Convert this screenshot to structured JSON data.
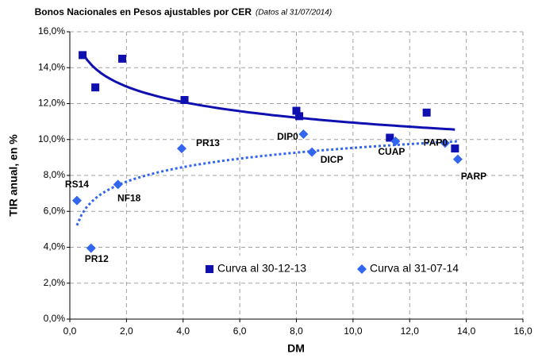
{
  "chart_data": {
    "type": "scatter",
    "title": "Bonos Nacionales en Pesos ajustables por CER",
    "subtitle": "(Datos al 31/07/2014)",
    "x_label": "DM",
    "y_label": "TIR anual, en %",
    "xlim": [
      0,
      16
    ],
    "xticks": [
      {
        "value": 0,
        "label": "0,0"
      },
      {
        "value": 2,
        "label": "2,0"
      },
      {
        "value": 4,
        "label": "4,0"
      },
      {
        "value": 6,
        "label": "6,0"
      },
      {
        "value": 8,
        "label": "8,0"
      },
      {
        "value": 10,
        "label": "10,0"
      },
      {
        "value": 12,
        "label": "12,0"
      },
      {
        "value": 14,
        "label": "14,0"
      },
      {
        "value": 16,
        "label": "16,0"
      }
    ],
    "ylim": [
      0,
      16
    ],
    "yticks": [
      {
        "value": 0,
        "label": "0,0%"
      },
      {
        "value": 2,
        "label": "2,0%"
      },
      {
        "value": 4,
        "label": "4,0%"
      },
      {
        "value": 6,
        "label": "6,0%"
      },
      {
        "value": 8,
        "label": "8,0%"
      },
      {
        "value": 10,
        "label": "10,0%"
      },
      {
        "value": 12,
        "label": "12,0%"
      },
      {
        "value": 14,
        "label": "14,0%"
      },
      {
        "value": 16,
        "label": "16,0%"
      }
    ],
    "grid": true,
    "legend": "lower right",
    "series": [
      {
        "name": "Curva al 30-12-13",
        "color": "#1010b0",
        "marker": "square",
        "trend": "solid",
        "x": [
          0.45,
          0.9,
          1.85,
          4.05,
          8.0,
          8.1,
          11.3,
          12.6,
          13.6
        ],
        "values": [
          14.7,
          12.9,
          14.5,
          12.2,
          11.6,
          11.3,
          10.1,
          11.5,
          9.5
        ]
      },
      {
        "name": "Curva al 31-07-14",
        "color": "#3366ee",
        "marker": "diamond",
        "trend": "dotted",
        "x": [
          0.25,
          0.75,
          1.7,
          3.95,
          8.25,
          8.55,
          11.5,
          13.25,
          13.7
        ],
        "values": [
          6.6,
          3.95,
          7.5,
          9.5,
          10.3,
          9.3,
          9.9,
          9.8,
          8.9
        ],
        "labels": [
          "RS14",
          "PR12",
          "NF18",
          "PR13",
          "DIP0",
          "DICP",
          "CUAP",
          "PAP0",
          "PARP"
        ]
      }
    ]
  }
}
